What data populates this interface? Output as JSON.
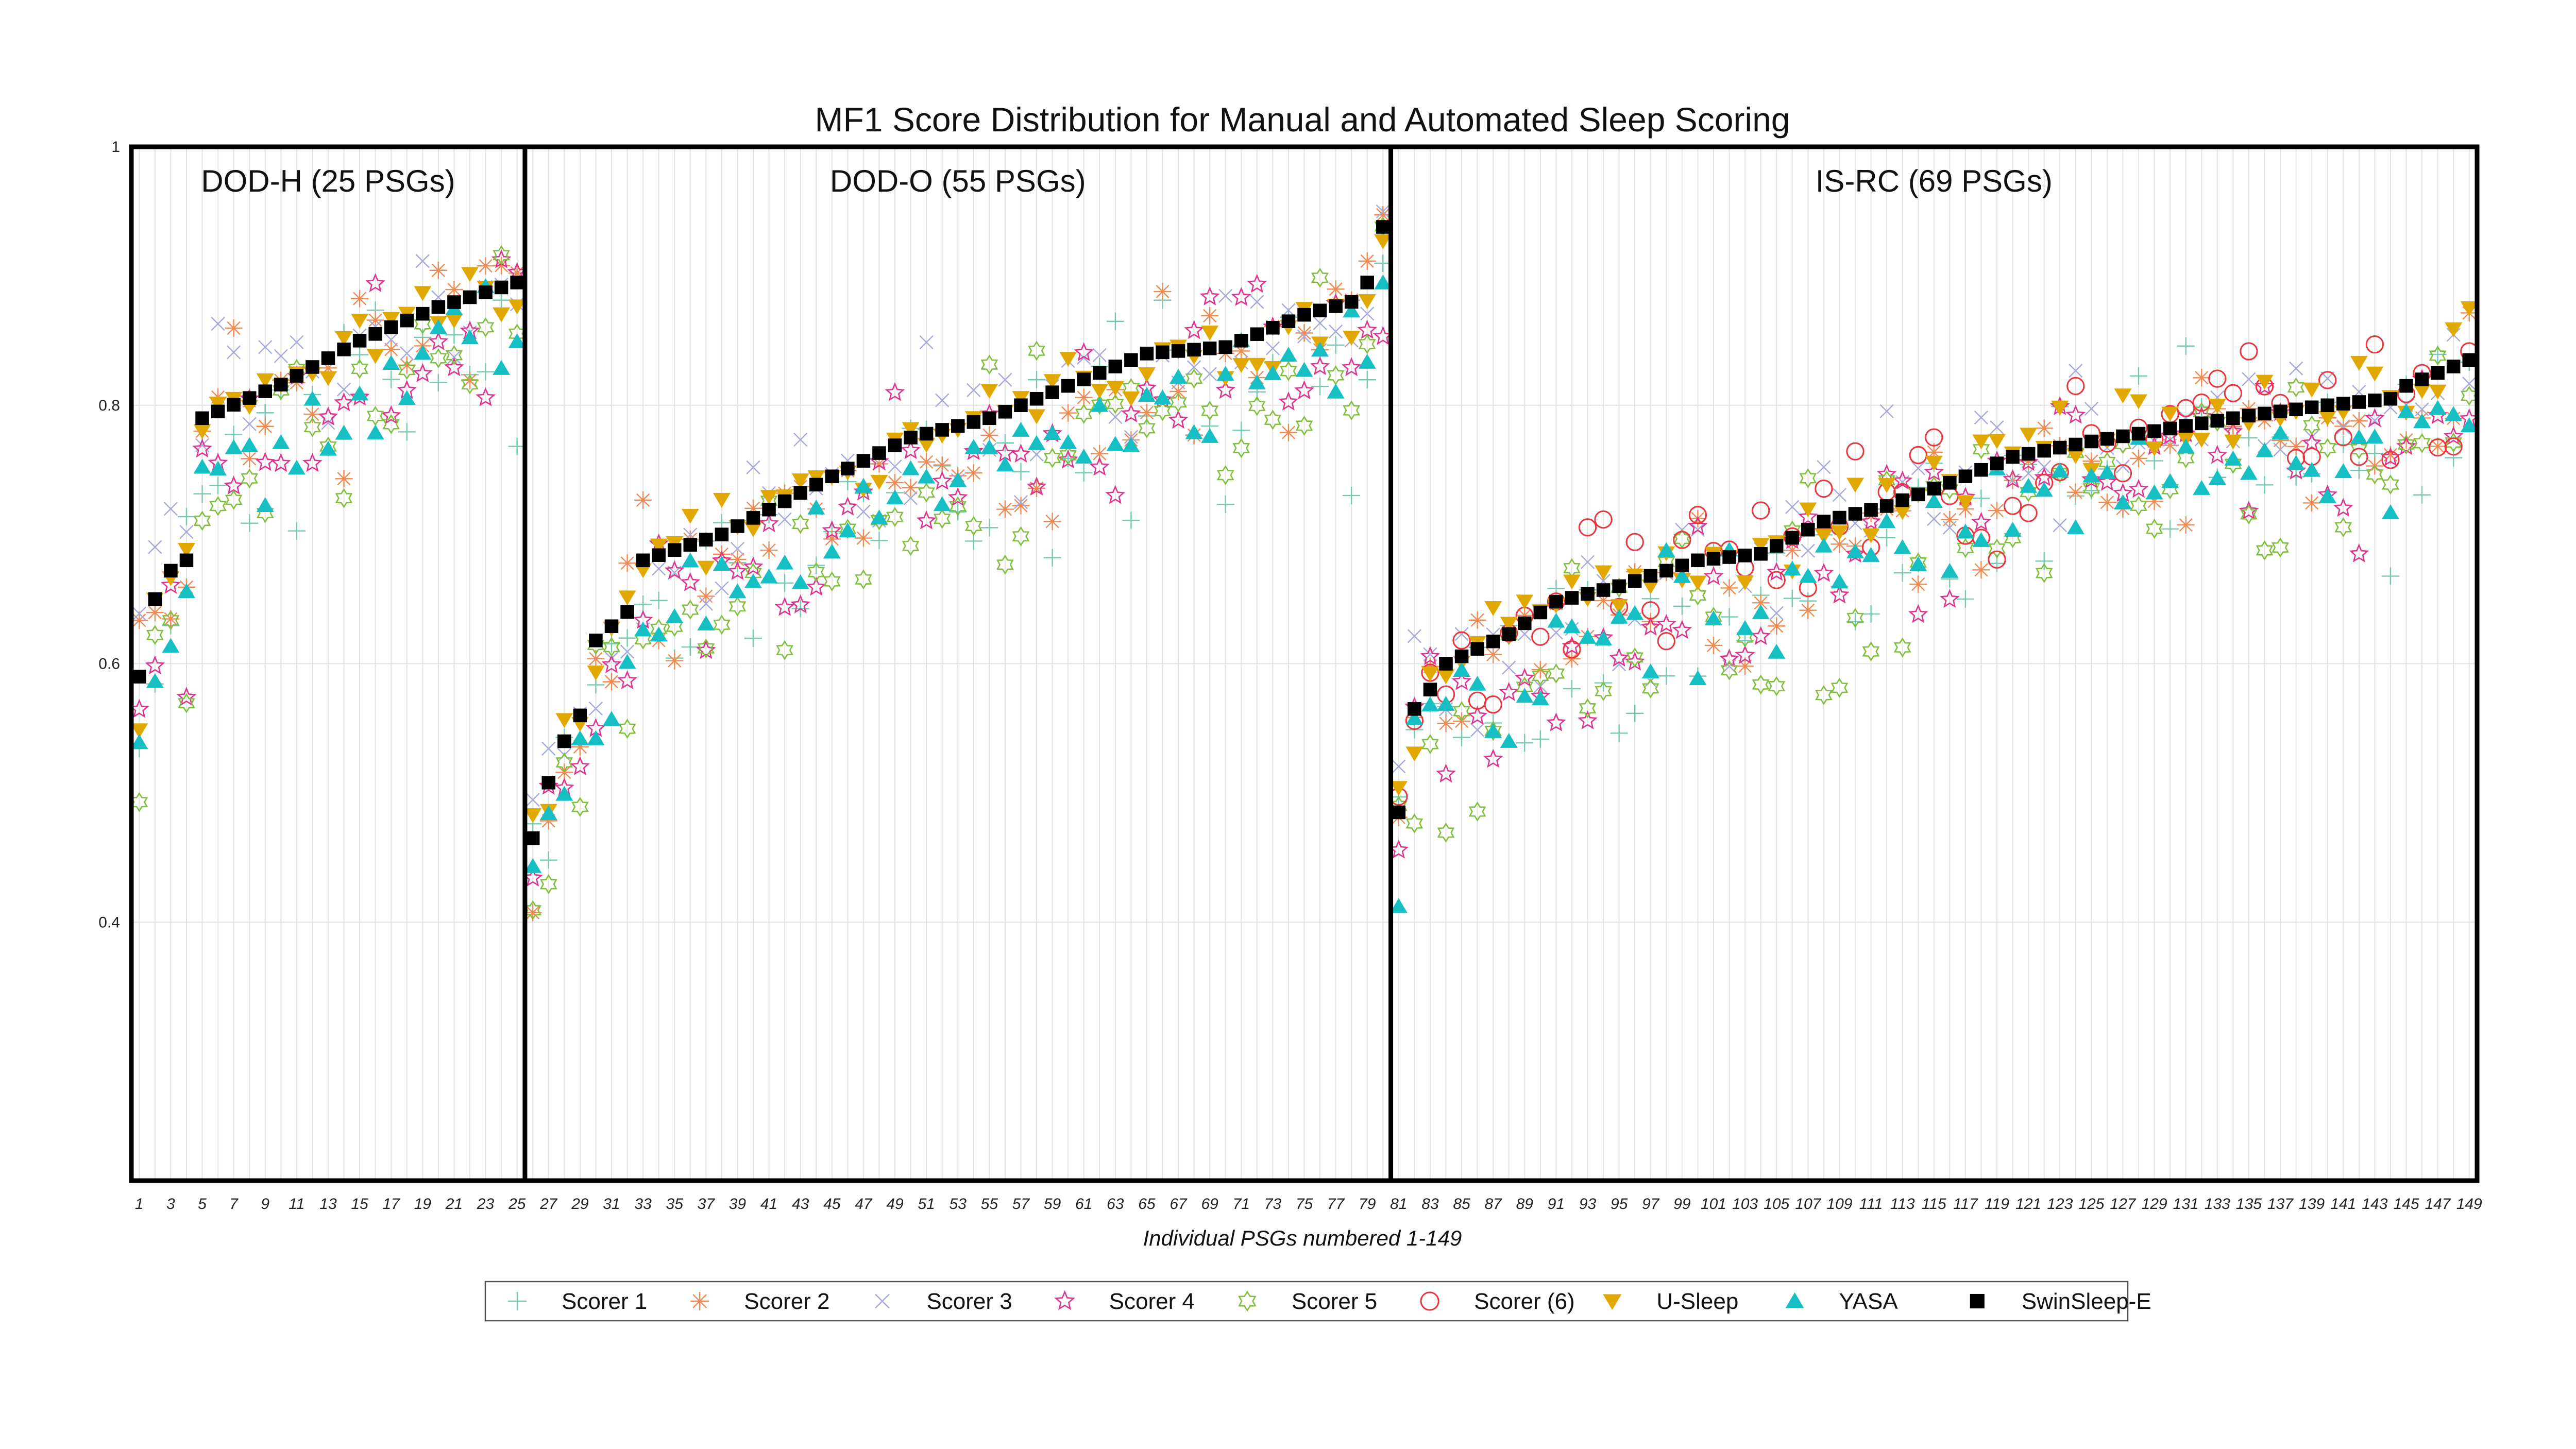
{
  "chart_data": {
    "type": "scatter",
    "title": "MF1 Score Distribution for Manual and Automated Sleep Scoring",
    "xlabel": "Individual PSGs numbered 1-149",
    "ylabel": "",
    "xlim": [
      1,
      149
    ],
    "ylim": [
      0.2,
      1.0
    ],
    "y_ticks": [
      {
        "value": 1.0,
        "label": "1"
      },
      {
        "value": 0.8,
        "label": "0.8"
      },
      {
        "value": 0.6,
        "label": "0.6"
      },
      {
        "value": 0.4,
        "label": "0.4"
      }
    ],
    "x_ticks": [
      1,
      3,
      5,
      7,
      9,
      11,
      13,
      15,
      17,
      19,
      21,
      23,
      25,
      27,
      29,
      31,
      33,
      35,
      37,
      39,
      41,
      43,
      45,
      47,
      49,
      51,
      53,
      55,
      57,
      59,
      61,
      63,
      65,
      67,
      69,
      71,
      73,
      75,
      77,
      79,
      81,
      83,
      85,
      87,
      89,
      91,
      93,
      95,
      97,
      99,
      101,
      103,
      105,
      107,
      109,
      111,
      113,
      115,
      117,
      119,
      121,
      123,
      125,
      127,
      129,
      131,
      133,
      135,
      137,
      139,
      141,
      143,
      145,
      147,
      149
    ],
    "grid": true,
    "legend_position": "bottom",
    "panels": [
      {
        "label": "DOD-H (25 PSGs)",
        "start": 1,
        "end": 25
      },
      {
        "label": "DOD-O (55 PSGs)",
        "start": 26,
        "end": 80
      },
      {
        "label": "IS-RC (69 PSGs)",
        "start": 81,
        "end": 149
      }
    ],
    "panel_dividers": [
      25.5,
      80.5
    ],
    "reference_series": "SwinSleep-E",
    "reference_anchors": [
      [
        1,
        0.59
      ],
      [
        2,
        0.65
      ],
      [
        3,
        0.672
      ],
      [
        4,
        0.68
      ],
      [
        5,
        0.79
      ],
      [
        10,
        0.816
      ],
      [
        15,
        0.85
      ],
      [
        20,
        0.876
      ],
      [
        25,
        0.895
      ],
      [
        26,
        0.465
      ],
      [
        27,
        0.508
      ],
      [
        28,
        0.54
      ],
      [
        29,
        0.56
      ],
      [
        30,
        0.618
      ],
      [
        32,
        0.64
      ],
      [
        33,
        0.68
      ],
      [
        38,
        0.7
      ],
      [
        45,
        0.745
      ],
      [
        50,
        0.775
      ],
      [
        55,
        0.79
      ],
      [
        60,
        0.815
      ],
      [
        65,
        0.84
      ],
      [
        70,
        0.845
      ],
      [
        75,
        0.87
      ],
      [
        78,
        0.88
      ],
      [
        79,
        0.895
      ],
      [
        80,
        0.938
      ],
      [
        81,
        0.485
      ],
      [
        82,
        0.565
      ],
      [
        83,
        0.58
      ],
      [
        84,
        0.6
      ],
      [
        88,
        0.623
      ],
      [
        91,
        0.648
      ],
      [
        95,
        0.66
      ],
      [
        100,
        0.68
      ],
      [
        104,
        0.685
      ],
      [
        108,
        0.71
      ],
      [
        112,
        0.722
      ],
      [
        116,
        0.74
      ],
      [
        120,
        0.76
      ],
      [
        125,
        0.772
      ],
      [
        130,
        0.782
      ],
      [
        135,
        0.792
      ],
      [
        140,
        0.8
      ],
      [
        144,
        0.805
      ],
      [
        145,
        0.815
      ],
      [
        147,
        0.825
      ],
      [
        149,
        0.835
      ]
    ],
    "series": [
      {
        "name": "Scorer 1",
        "marker": "plus",
        "color": "#74c9b3",
        "spread": 0.11,
        "bias": -0.04,
        "seed": 11
      },
      {
        "name": "Scorer 2",
        "marker": "asterisk",
        "color": "#f08a52",
        "spread": 0.09,
        "bias": -0.02,
        "seed": 23
      },
      {
        "name": "Scorer 3",
        "marker": "cross",
        "color": "#a5a9da",
        "spread": 0.09,
        "bias": -0.005,
        "seed": 37
      },
      {
        "name": "Scorer 4",
        "marker": "star",
        "color": "#e0338f",
        "spread": 0.1,
        "bias": -0.04,
        "seed": 41
      },
      {
        "name": "Scorer 5",
        "marker": "hexagram",
        "color": "#7fbf3b",
        "spread": 0.1,
        "bias": -0.05,
        "seed": 53
      },
      {
        "name": "Scorer (6)",
        "marker": "circle",
        "color": "#e8363c",
        "spread": 0.08,
        "bias": 0.0,
        "seed": 67,
        "start": 81
      },
      {
        "name": "U-Sleep",
        "marker": "triangle-down",
        "color": "#e0a800",
        "spread": 0.04,
        "bias": 0.0,
        "seed": 71
      },
      {
        "name": "YASA",
        "marker": "triangle-up",
        "color": "#16bfc4",
        "spread": 0.06,
        "bias": -0.04,
        "seed": 83
      },
      {
        "name": "SwinSleep-E",
        "marker": "square",
        "color": "#000000",
        "spread": 0,
        "bias": 0,
        "seed": 0
      }
    ]
  }
}
